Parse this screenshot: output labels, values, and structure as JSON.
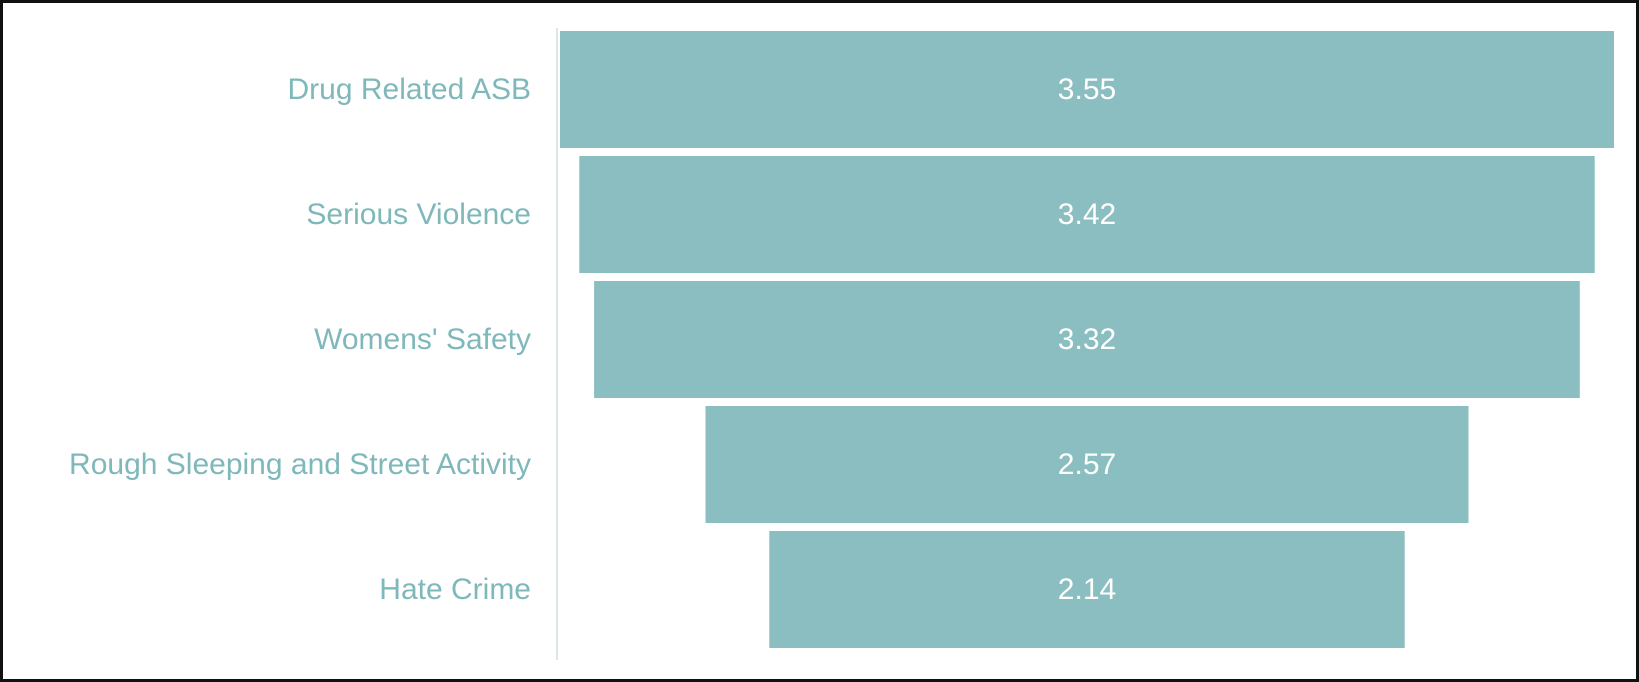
{
  "chart_data": {
    "type": "bar",
    "orientation": "horizontal",
    "layout": "funnel",
    "categories": [
      "Drug Related ASB",
      "Serious Violence",
      "Womens' Safety",
      "Rough Sleeping and Street Activity",
      "Hate Crime"
    ],
    "values": [
      3.55,
      3.42,
      3.32,
      2.57,
      2.14
    ],
    "data_labels": [
      "3.55",
      "3.42",
      "3.32",
      "2.57",
      "2.14"
    ],
    "title": "",
    "xlabel": "",
    "ylabel": "",
    "grid": false,
    "legend": "none",
    "colors": {
      "bar": "#8bbec1",
      "label": "#7fb8bb",
      "value_text": "#ffffff",
      "axis": "#dde6e7",
      "frame": "#111111"
    }
  }
}
